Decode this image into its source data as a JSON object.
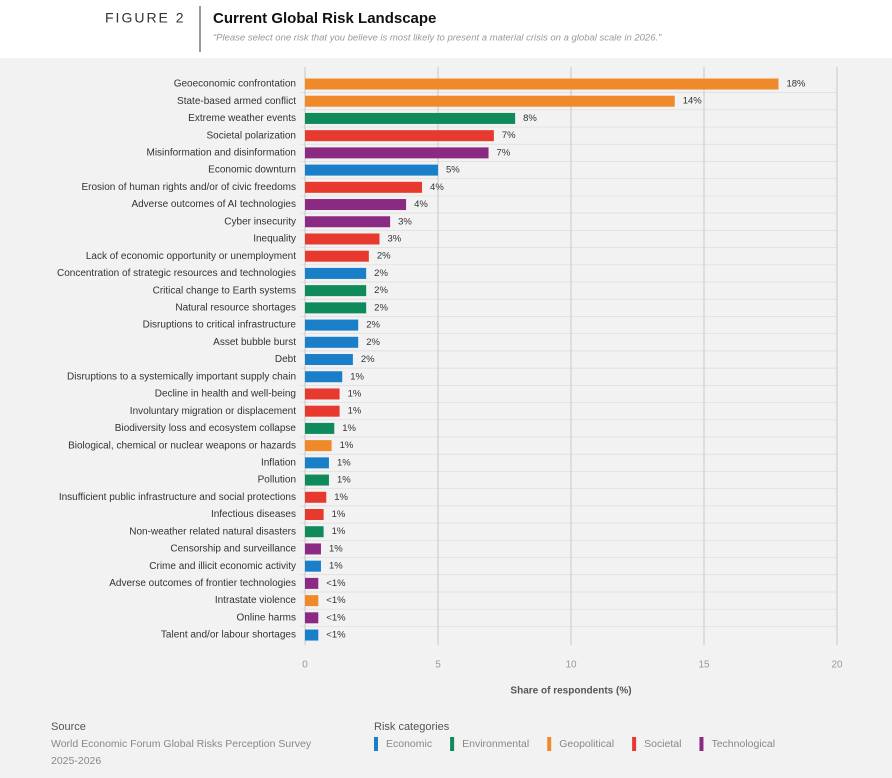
{
  "figure_label": "FIGURE 2",
  "chart_data": {
    "type": "barh",
    "title": "Current Global Risk Landscape",
    "subtitle": "“Please select one risk that you believe is most likely to present a material crisis on a global scale in 2026.”",
    "categories": [
      "Geoeconomic confrontation",
      "State-based armed conflict",
      "Extreme weather events",
      "Societal polarization",
      "Misinformation and disinformation",
      "Economic downturn",
      "Erosion of human rights and/or of civic freedoms",
      "Adverse outcomes of AI technologies",
      "Cyber insecurity",
      "Inequality",
      "Lack of economic opportunity or unemployment",
      "Concentration of strategic resources and technologies",
      "Critical change to Earth systems",
      "Natural resource shortages",
      "Disruptions to critical infrastructure",
      "Asset bubble burst",
      "Debt",
      "Disruptions to a systemically important supply chain",
      "Decline in health and well-being",
      "Involuntary migration or displacement",
      "Biodiversity loss and ecosystem collapse",
      "Biological, chemical or nuclear weapons or hazards",
      "Inflation",
      "Pollution",
      "Insufficient public infrastructure and social protections",
      "Infectious diseases",
      "Non-weather related natural disasters",
      "Censorship and surveillance",
      "Crime and illicit economic activity",
      "Adverse outcomes of frontier technologies",
      "Intrastate violence",
      "Online harms",
      "Talent and/or labour shortages"
    ],
    "values": [
      17.8,
      13.9,
      7.9,
      7.1,
      6.9,
      5.0,
      4.4,
      3.8,
      3.2,
      2.8,
      2.4,
      2.3,
      2.3,
      2.3,
      2.0,
      2.0,
      1.8,
      1.4,
      1.3,
      1.3,
      1.1,
      1.0,
      0.9,
      0.9,
      0.8,
      0.7,
      0.7,
      0.6,
      0.6,
      0.5,
      0.5,
      0.5,
      0.5
    ],
    "value_labels": [
      "18%",
      "14%",
      "8%",
      "7%",
      "7%",
      "5%",
      "4%",
      "4%",
      "3%",
      "3%",
      "2%",
      "2%",
      "2%",
      "2%",
      "2%",
      "2%",
      "2%",
      "1%",
      "1%",
      "1%",
      "1%",
      "1%",
      "1%",
      "1%",
      "1%",
      "1%",
      "1%",
      "1%",
      "1%",
      "<1%",
      "<1%",
      "<1%",
      "<1%"
    ],
    "bar_colors": [
      "#f0892a",
      "#f0892a",
      "#0f8a5a",
      "#e8392e",
      "#8b2a82",
      "#1a7fc9",
      "#e8392e",
      "#8b2a82",
      "#8b2a82",
      "#e8392e",
      "#e8392e",
      "#1a7fc9",
      "#0f8a5a",
      "#0f8a5a",
      "#1a7fc9",
      "#1a7fc9",
      "#1a7fc9",
      "#1a7fc9",
      "#e8392e",
      "#e8392e",
      "#0f8a5a",
      "#f0892a",
      "#1a7fc9",
      "#0f8a5a",
      "#e8392e",
      "#e8392e",
      "#0f8a5a",
      "#8b2a82",
      "#1a7fc9",
      "#8b2a82",
      "#f0892a",
      "#8b2a82",
      "#1a7fc9"
    ],
    "xlim": [
      0,
      20
    ],
    "xticks": [
      0,
      5,
      10,
      15,
      20
    ],
    "grid": true,
    "xlabel": "Share of respondents (%)",
    "legend_title": "Risk categories",
    "legend": [
      {
        "name": "Economic",
        "color": "#1a7fc9"
      },
      {
        "name": "Environmental",
        "color": "#0f8a5a"
      },
      {
        "name": "Geopolitical",
        "color": "#f0892a"
      },
      {
        "name": "Societal",
        "color": "#e8392e"
      },
      {
        "name": "Technological",
        "color": "#8b2a82"
      }
    ]
  },
  "source": {
    "title": "Source",
    "lines": [
      "World Economic Forum Global Risks Perception Survey",
      "2025-2026"
    ]
  }
}
